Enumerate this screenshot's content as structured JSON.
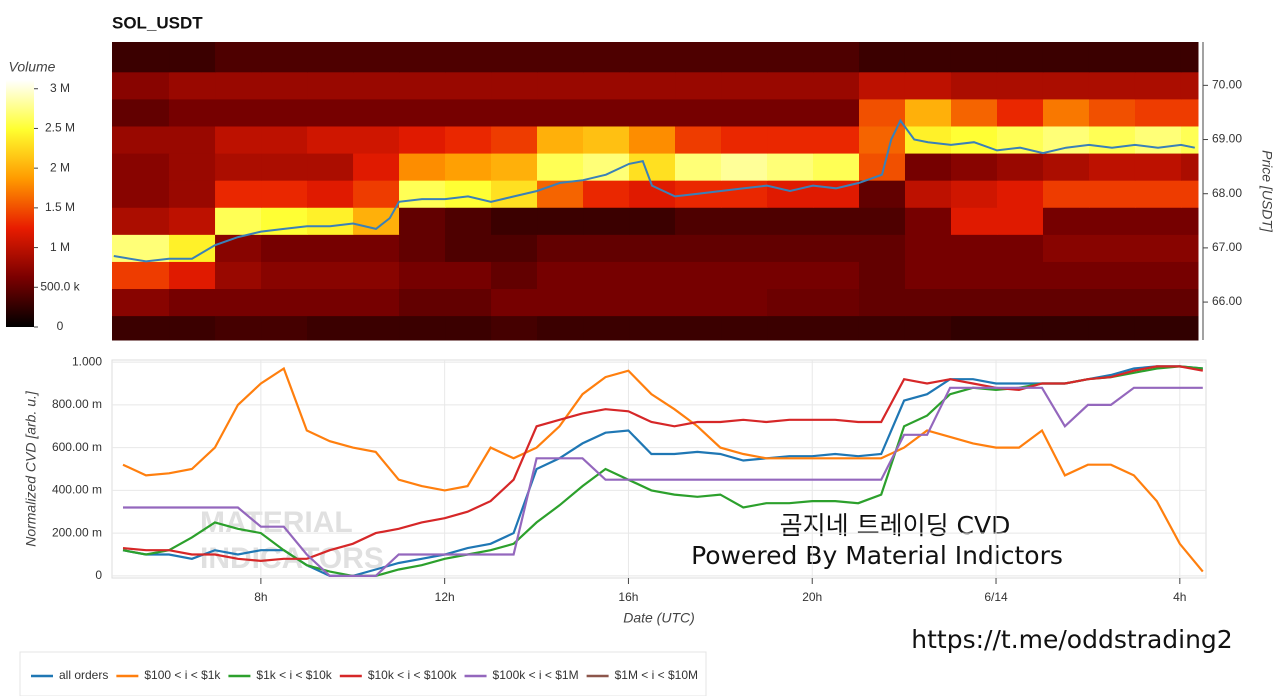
{
  "chart_data": [
    {
      "type": "heatmap",
      "title": "SOL_USDT",
      "y_label": "Price [USDT]",
      "xlim": [
        4.76,
        28.37
      ],
      "ylim": [
        65.3,
        70.8
      ],
      "yticks": [
        {
          "value": 66,
          "label": "66.00"
        },
        {
          "value": 67,
          "label": "67.00"
        },
        {
          "value": 68,
          "label": "68.00"
        },
        {
          "value": 69,
          "label": "69.00"
        },
        {
          "value": 70,
          "label": "70.00"
        }
      ],
      "x_bins": [
        4.76,
        6,
        7,
        8,
        9,
        10,
        11,
        12,
        13,
        14,
        15,
        16,
        17,
        18,
        19,
        20,
        21,
        22,
        23,
        24,
        25,
        26,
        27,
        28,
        28.37
      ],
      "y_bins": [
        65.3,
        65.75,
        66.25,
        66.75,
        67.25,
        67.75,
        68.25,
        68.75,
        69.25,
        69.75,
        70.25,
        70.8
      ],
      "z": [
        [
          0.3,
          0.3,
          0.35,
          0.35,
          0.3,
          0.3,
          0.3,
          0.3,
          0.35,
          0.3,
          0.3,
          0.3,
          0.3,
          0.3,
          0.3,
          0.3,
          0.3,
          0.3,
          0.25,
          0.25,
          0.25,
          0.25,
          0.25,
          0.25
        ],
        [
          0.7,
          0.6,
          0.6,
          0.6,
          0.6,
          0.6,
          0.5,
          0.5,
          0.6,
          0.6,
          0.6,
          0.6,
          0.6,
          0.6,
          0.55,
          0.55,
          0.5,
          0.5,
          0.5,
          0.5,
          0.5,
          0.5,
          0.5,
          0.5
        ],
        [
          1.4,
          1.2,
          0.8,
          0.7,
          0.7,
          0.7,
          0.6,
          0.6,
          0.5,
          0.6,
          0.6,
          0.6,
          0.6,
          0.6,
          0.6,
          0.6,
          0.5,
          0.6,
          0.6,
          0.6,
          0.6,
          0.6,
          0.6,
          0.6
        ],
        [
          2.7,
          2.4,
          0.7,
          0.6,
          0.6,
          0.6,
          0.5,
          0.4,
          0.4,
          0.5,
          0.5,
          0.5,
          0.5,
          0.5,
          0.5,
          0.5,
          0.5,
          0.6,
          0.6,
          0.6,
          0.7,
          0.7,
          0.7,
          0.7
        ],
        [
          0.9,
          1.0,
          2.6,
          2.5,
          2.4,
          2.0,
          0.5,
          0.4,
          0.3,
          0.3,
          0.3,
          0.3,
          0.4,
          0.4,
          0.4,
          0.4,
          0.4,
          0.6,
          1.2,
          1.2,
          0.6,
          0.6,
          0.6,
          0.6
        ],
        [
          0.7,
          0.8,
          1.3,
          1.3,
          1.2,
          1.4,
          2.6,
          2.5,
          2.3,
          1.6,
          1.3,
          1.2,
          1.3,
          1.3,
          1.2,
          1.2,
          0.5,
          1.0,
          1.1,
          1.2,
          1.4,
          1.4,
          1.4,
          1.4
        ],
        [
          0.7,
          0.8,
          0.9,
          0.9,
          0.9,
          1.2,
          1.8,
          1.9,
          2.0,
          2.6,
          2.7,
          2.3,
          2.7,
          2.8,
          2.7,
          2.6,
          1.5,
          0.6,
          0.7,
          0.8,
          0.9,
          1.0,
          1.0,
          0.9
        ],
        [
          0.8,
          0.8,
          1.0,
          1.0,
          1.1,
          1.1,
          1.2,
          1.3,
          1.4,
          2.0,
          2.1,
          1.8,
          1.4,
          1.3,
          1.3,
          1.3,
          1.6,
          2.4,
          2.5,
          2.6,
          2.7,
          2.6,
          2.7,
          2.6
        ],
        [
          0.5,
          0.6,
          0.6,
          0.6,
          0.6,
          0.6,
          0.6,
          0.6,
          0.6,
          0.6,
          0.6,
          0.6,
          0.6,
          0.6,
          0.6,
          0.6,
          1.5,
          2.0,
          1.6,
          1.3,
          1.7,
          1.5,
          1.4,
          1.4
        ],
        [
          0.7,
          0.8,
          0.8,
          0.8,
          0.8,
          0.8,
          0.8,
          0.8,
          0.8,
          0.8,
          0.8,
          0.8,
          0.8,
          0.8,
          0.8,
          0.8,
          1.0,
          1.0,
          0.9,
          0.9,
          0.9,
          0.9,
          0.9,
          0.9
        ],
        [
          0.3,
          0.3,
          0.4,
          0.4,
          0.4,
          0.4,
          0.4,
          0.4,
          0.4,
          0.4,
          0.4,
          0.4,
          0.4,
          0.4,
          0.4,
          0.4,
          0.3,
          0.3,
          0.3,
          0.3,
          0.3,
          0.3,
          0.3,
          0.3
        ]
      ],
      "colorscale": [
        "#000000",
        "#7a0000",
        "#e81c00",
        "#ff9a00",
        "#ffff30",
        "#ffffff"
      ],
      "colorbar": {
        "label": "Volume",
        "lim": [
          0,
          3.11
        ],
        "ticks": [
          0,
          {
            "value": 0.5,
            "label": "500.0 k"
          },
          {
            "value": 1,
            "label": "1 M"
          },
          {
            "value": 1.5,
            "label": "1.5 M"
          },
          {
            "value": 2,
            "label": "2 M"
          },
          {
            "value": 2.5,
            "label": "2.5 M"
          },
          {
            "value": 3,
            "label": "3 M"
          }
        ]
      },
      "line_color": "#3a80b8",
      "line_x": [
        4.8,
        5.5,
        6,
        6.5,
        7,
        7.5,
        8,
        8.5,
        9,
        9.5,
        10,
        10.5,
        10.8,
        11,
        11.5,
        12,
        12.5,
        13,
        13.5,
        14,
        14.5,
        15,
        15.5,
        16,
        16.3,
        16.5,
        17,
        17.5,
        18,
        18.5,
        19,
        19.5,
        20,
        20.5,
        21,
        21.5,
        21.7,
        21.9,
        22.2,
        22.5,
        23,
        23.5,
        24,
        24.5,
        25,
        25.5,
        26,
        26.5,
        27,
        27.5,
        28,
        28.3
      ],
      "line_values": [
        66.85,
        66.75,
        66.8,
        66.8,
        67.05,
        67.2,
        67.3,
        67.35,
        67.4,
        67.4,
        67.45,
        67.35,
        67.55,
        67.85,
        67.9,
        67.9,
        67.95,
        67.85,
        67.95,
        68.05,
        68.2,
        68.25,
        68.35,
        68.55,
        68.6,
        68.15,
        67.95,
        68.0,
        68.05,
        68.1,
        68.15,
        68.05,
        68.15,
        68.1,
        68.2,
        68.35,
        69.0,
        69.35,
        69.0,
        68.95,
        68.9,
        68.95,
        68.8,
        68.85,
        68.75,
        68.85,
        68.9,
        68.85,
        68.9,
        68.85,
        68.9,
        68.85
      ]
    },
    {
      "type": "line",
      "x_label": "Date (UTC)",
      "y_label": "Normalized CVD [arb. u.]",
      "xlim": [
        4.76,
        28.57
      ],
      "ylim": [
        -0.01,
        1.01
      ],
      "grid": true,
      "xticks": [
        {
          "value": 8,
          "label": "8h"
        },
        {
          "value": 12,
          "label": "12h"
        },
        {
          "value": 16,
          "label": "16h"
        },
        {
          "value": 20,
          "label": "20h"
        },
        {
          "value": 24,
          "label": "6/14"
        },
        {
          "value": 28,
          "label": "4h"
        }
      ],
      "yticks": [
        0,
        {
          "value": 0.2,
          "label": "200.00 m"
        },
        {
          "value": 0.4,
          "label": "400.00 m"
        },
        {
          "value": 0.6,
          "label": "600.00 m"
        },
        {
          "value": 0.8,
          "label": "800.00 m"
        },
        {
          "value": 1,
          "label": "1.000"
        }
      ],
      "x": [
        5,
        5.5,
        6,
        6.5,
        7,
        7.5,
        8,
        8.5,
        9,
        9.5,
        10,
        10.5,
        11,
        11.5,
        12,
        12.5,
        13,
        13.5,
        14,
        14.5,
        15,
        15.5,
        16,
        16.5,
        17,
        17.5,
        18,
        18.5,
        19,
        19.5,
        20,
        20.5,
        21,
        21.5,
        22,
        22.5,
        23,
        23.5,
        24,
        24.5,
        25,
        25.5,
        26,
        26.5,
        27,
        27.5,
        28,
        28.5
      ],
      "series": [
        {
          "name": "all orders",
          "color": "#1f77b4",
          "values": [
            0.12,
            0.1,
            0.1,
            0.08,
            0.12,
            0.1,
            0.12,
            0.12,
            0.05,
            0.0,
            0.0,
            0.03,
            0.06,
            0.08,
            0.1,
            0.13,
            0.15,
            0.2,
            0.5,
            0.55,
            0.62,
            0.67,
            0.68,
            0.57,
            0.57,
            0.58,
            0.57,
            0.54,
            0.55,
            0.56,
            0.56,
            0.57,
            0.56,
            0.57,
            0.82,
            0.85,
            0.92,
            0.92,
            0.9,
            0.9,
            0.9,
            0.9,
            0.92,
            0.94,
            0.97,
            0.98,
            0.98,
            0.97
          ]
        },
        {
          "name": "$100 < i < $1k",
          "color": "#ff7f0e",
          "values": [
            0.52,
            0.47,
            0.48,
            0.5,
            0.6,
            0.8,
            0.9,
            0.97,
            0.68,
            0.63,
            0.6,
            0.58,
            0.45,
            0.42,
            0.4,
            0.42,
            0.6,
            0.55,
            0.6,
            0.7,
            0.85,
            0.93,
            0.96,
            0.85,
            0.78,
            0.7,
            0.6,
            0.57,
            0.55,
            0.55,
            0.55,
            0.55,
            0.55,
            0.55,
            0.6,
            0.68,
            0.65,
            0.62,
            0.6,
            0.6,
            0.68,
            0.47,
            0.52,
            0.52,
            0.47,
            0.35,
            0.15,
            0.02
          ]
        },
        {
          "name": "$1k < i < $10k",
          "color": "#2ca02c",
          "values": [
            0.12,
            0.1,
            0.12,
            0.18,
            0.25,
            0.22,
            0.2,
            0.12,
            0.05,
            0.02,
            0.0,
            0.0,
            0.03,
            0.05,
            0.08,
            0.1,
            0.12,
            0.15,
            0.25,
            0.33,
            0.42,
            0.5,
            0.45,
            0.4,
            0.38,
            0.37,
            0.38,
            0.32,
            0.34,
            0.34,
            0.35,
            0.35,
            0.34,
            0.38,
            0.7,
            0.75,
            0.85,
            0.88,
            0.87,
            0.88,
            0.9,
            0.9,
            0.92,
            0.93,
            0.95,
            0.97,
            0.98,
            0.97
          ]
        },
        {
          "name": "$10k < i < $100k",
          "color": "#d62728",
          "values": [
            0.13,
            0.12,
            0.12,
            0.1,
            0.1,
            0.08,
            0.07,
            0.08,
            0.08,
            0.12,
            0.15,
            0.2,
            0.22,
            0.25,
            0.27,
            0.3,
            0.35,
            0.45,
            0.7,
            0.73,
            0.76,
            0.78,
            0.77,
            0.72,
            0.7,
            0.72,
            0.72,
            0.73,
            0.72,
            0.73,
            0.73,
            0.73,
            0.72,
            0.72,
            0.92,
            0.9,
            0.92,
            0.9,
            0.88,
            0.87,
            0.9,
            0.9,
            0.92,
            0.93,
            0.96,
            0.98,
            0.98,
            0.96
          ]
        },
        {
          "name": "$100k < i < $1M",
          "color": "#9467bd",
          "values": [
            0.32,
            0.32,
            0.32,
            0.32,
            0.32,
            0.32,
            0.23,
            0.23,
            0.1,
            0.0,
            0.0,
            0.0,
            0.1,
            0.1,
            0.1,
            0.1,
            0.1,
            0.1,
            0.55,
            0.55,
            0.55,
            0.45,
            0.45,
            0.45,
            0.45,
            0.45,
            0.45,
            0.45,
            0.45,
            0.45,
            0.45,
            0.45,
            0.45,
            0.45,
            0.66,
            0.66,
            0.88,
            0.88,
            0.88,
            0.88,
            0.88,
            0.7,
            0.8,
            0.8,
            0.88,
            0.88,
            0.88,
            0.88
          ]
        },
        {
          "name": "$1M < i < $10M",
          "color": "#8c564b",
          "values": [
            null,
            null,
            null,
            null,
            null,
            null,
            null,
            null,
            null,
            null,
            null,
            null,
            null,
            null,
            null,
            null,
            null,
            null,
            null,
            null,
            null,
            null,
            null,
            null,
            null,
            null,
            null,
            null,
            null,
            null,
            null,
            null,
            null,
            null,
            null,
            null,
            null,
            null,
            null,
            null,
            null,
            null,
            null,
            null,
            null,
            null,
            null,
            null
          ]
        }
      ]
    }
  ],
  "watermark": [
    "MATERIAL",
    "INDICATORS"
  ],
  "overlay": {
    "title": "곰지네 트레이딩 CVD",
    "subtitle": "Powered By Material Indictors",
    "url": "https://t.me/oddstrading2"
  }
}
